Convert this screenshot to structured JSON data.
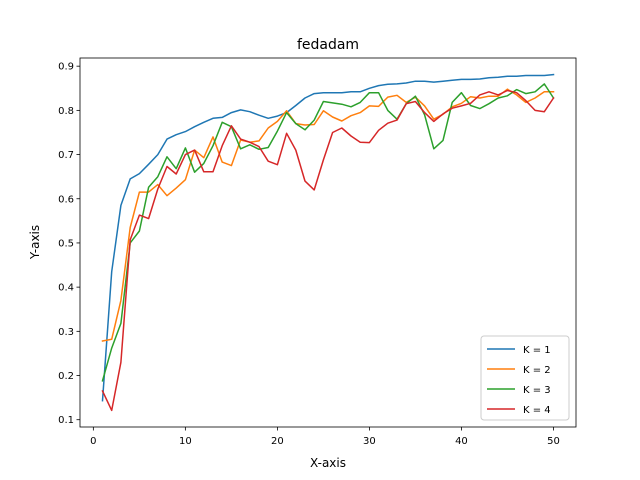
{
  "chart_data": {
    "type": "line",
    "title": "fedadam",
    "xlabel": "X-axis",
    "ylabel": "Y-axis",
    "xlim": [
      -1.45,
      52.45
    ],
    "ylim": [
      0.0835,
      0.9185
    ],
    "xticks": [
      0,
      10,
      20,
      30,
      40,
      50
    ],
    "yticks": [
      0.1,
      0.2,
      0.3,
      0.4,
      0.5,
      0.6,
      0.7,
      0.8,
      0.9
    ],
    "grid": false,
    "legend_position": "bottom-right",
    "x": [
      1,
      2,
      3,
      4,
      5,
      6,
      7,
      8,
      9,
      10,
      11,
      12,
      13,
      14,
      15,
      16,
      17,
      18,
      19,
      20,
      21,
      22,
      23,
      24,
      25,
      26,
      27,
      28,
      29,
      30,
      31,
      32,
      33,
      34,
      35,
      36,
      37,
      38,
      39,
      40,
      41,
      42,
      43,
      44,
      45,
      46,
      47,
      48,
      49,
      50
    ],
    "series": [
      {
        "name": "K = 1",
        "color": "#1f77b4",
        "values": [
          0.143,
          0.435,
          0.585,
          0.645,
          0.657,
          0.678,
          0.7,
          0.735,
          0.745,
          0.752,
          0.763,
          0.773,
          0.782,
          0.784,
          0.795,
          0.801,
          0.797,
          0.789,
          0.782,
          0.787,
          0.795,
          0.811,
          0.828,
          0.838,
          0.84,
          0.84,
          0.84,
          0.842,
          0.842,
          0.85,
          0.856,
          0.859,
          0.86,
          0.862,
          0.866,
          0.866,
          0.864,
          0.866,
          0.868,
          0.87,
          0.87,
          0.871,
          0.874,
          0.875,
          0.877,
          0.877,
          0.879,
          0.879,
          0.879,
          0.881
        ]
      },
      {
        "name": "K = 2",
        "color": "#ff7f0e",
        "values": [
          0.278,
          0.282,
          0.37,
          0.535,
          0.615,
          0.615,
          0.632,
          0.607,
          0.624,
          0.643,
          0.71,
          0.693,
          0.74,
          0.683,
          0.675,
          0.733,
          0.728,
          0.731,
          0.76,
          0.775,
          0.799,
          0.77,
          0.767,
          0.768,
          0.799,
          0.785,
          0.776,
          0.788,
          0.795,
          0.81,
          0.809,
          0.83,
          0.834,
          0.818,
          0.83,
          0.81,
          0.78,
          0.791,
          0.808,
          0.816,
          0.831,
          0.828,
          0.832,
          0.832,
          0.848,
          0.835,
          0.818,
          0.828,
          0.842,
          0.842
        ]
      },
      {
        "name": "K = 3",
        "color": "#2ca02c",
        "values": [
          0.188,
          0.262,
          0.318,
          0.5,
          0.527,
          0.626,
          0.65,
          0.695,
          0.668,
          0.715,
          0.66,
          0.68,
          0.72,
          0.773,
          0.763,
          0.713,
          0.722,
          0.712,
          0.716,
          0.753,
          0.795,
          0.77,
          0.756,
          0.778,
          0.82,
          0.817,
          0.814,
          0.808,
          0.818,
          0.84,
          0.84,
          0.8,
          0.78,
          0.815,
          0.832,
          0.79,
          0.713,
          0.732,
          0.818,
          0.84,
          0.811,
          0.804,
          0.815,
          0.828,
          0.833,
          0.847,
          0.838,
          0.842,
          0.86,
          0.828
        ]
      },
      {
        "name": "K = 4",
        "color": "#d62728",
        "values": [
          0.165,
          0.121,
          0.23,
          0.507,
          0.563,
          0.555,
          0.622,
          0.673,
          0.656,
          0.7,
          0.71,
          0.661,
          0.661,
          0.72,
          0.765,
          0.735,
          0.728,
          0.718,
          0.685,
          0.677,
          0.748,
          0.71,
          0.64,
          0.62,
          0.688,
          0.75,
          0.76,
          0.742,
          0.728,
          0.727,
          0.755,
          0.771,
          0.778,
          0.815,
          0.82,
          0.795,
          0.775,
          0.792,
          0.805,
          0.81,
          0.816,
          0.835,
          0.842,
          0.835,
          0.845,
          0.84,
          0.822,
          0.8,
          0.797,
          0.828
        ]
      }
    ]
  }
}
